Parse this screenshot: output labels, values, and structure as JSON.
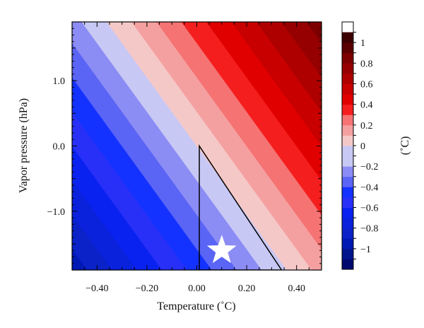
{
  "chart_data": {
    "type": "heatmap",
    "subtype": "filled-contour",
    "xlabel": "Temperature (˚C)",
    "ylabel": "Vapor pressure (hPa)",
    "xlim": [
      -0.5,
      0.5
    ],
    "ylim": [
      -1.9,
      1.9
    ],
    "x_ticks": [
      -0.4,
      -0.2,
      0.0,
      0.2,
      0.4
    ],
    "x_tick_labels": [
      "−0.40",
      "−0.20",
      "0.00",
      "0.20",
      "0.40"
    ],
    "y_ticks": [
      -1.0,
      0.0,
      1.0
    ],
    "y_tick_labels": [
      "−1.0",
      "0.0",
      "1.0"
    ],
    "field": "value = 1.0 * temperature + 0.19 * vapor_pressure",
    "field_coefficients": {
      "temperature": 1.0,
      "vapor_pressure": 0.19
    },
    "contour_bands": [
      {
        "lower": -1.1,
        "upper": -1.0,
        "color": "#000a6e"
      },
      {
        "lower": -1.0,
        "upper": -0.9,
        "color": "#00148c"
      },
      {
        "lower": -0.9,
        "upper": -0.8,
        "color": "#0019b4"
      },
      {
        "lower": -0.8,
        "upper": -0.7,
        "color": "#0a22c8"
      },
      {
        "lower": -0.7,
        "upper": -0.6,
        "color": "#0a22dc"
      },
      {
        "lower": -0.6,
        "upper": -0.5,
        "color": "#0a22f0"
      },
      {
        "lower": -0.5,
        "upper": -0.4,
        "color": "#2830f8"
      },
      {
        "lower": -0.4,
        "upper": -0.3,
        "color": "#1432ff"
      },
      {
        "lower": -0.3,
        "upper": -0.2,
        "color": "#5a64f5"
      },
      {
        "lower": -0.2,
        "upper": -0.1,
        "color": "#8c8cf5"
      },
      {
        "lower": -0.1,
        "upper": 0.0,
        "color": "#c8c8f5"
      },
      {
        "lower": 0.0,
        "upper": 0.1,
        "color": "#f5c8c8"
      },
      {
        "lower": 0.1,
        "upper": 0.2,
        "color": "#f5a0a0"
      },
      {
        "lower": 0.2,
        "upper": 0.3,
        "color": "#f57373"
      },
      {
        "lower": 0.3,
        "upper": 0.4,
        "color": "#f51e1e"
      },
      {
        "lower": 0.4,
        "upper": 0.5,
        "color": "#e10000"
      },
      {
        "lower": 0.5,
        "upper": 0.6,
        "color": "#c80000"
      },
      {
        "lower": 0.6,
        "upper": 0.7,
        "color": "#af0000"
      },
      {
        "lower": 0.7,
        "upper": 0.8,
        "color": "#960000"
      },
      {
        "lower": 0.8,
        "upper": 0.9,
        "color": "#7d0000"
      }
    ],
    "overlay_region": {
      "shape": "triangle",
      "vertices": [
        [
          0.01,
          0.0
        ],
        [
          0.01,
          -1.9
        ],
        [
          0.34,
          -1.9
        ]
      ],
      "stroke": "#000000"
    },
    "marker": {
      "shape": "star",
      "x": 0.1,
      "y": -1.6,
      "color": "#ffffff"
    },
    "colorbar": {
      "label": "(˚C)",
      "range": [
        -1.2,
        1.2
      ],
      "levels": [
        -1.1,
        -1.0,
        -0.9,
        -0.8,
        -0.7,
        -0.6,
        -0.5,
        -0.4,
        -0.3,
        -0.2,
        -0.1,
        0.0,
        0.1,
        0.2,
        0.3,
        0.4,
        0.5,
        0.6,
        0.7,
        0.8,
        0.9,
        1.0,
        1.1,
        1.2
      ],
      "colors": [
        "#000a6e",
        "#00148c",
        "#0019b4",
        "#0a22c8",
        "#0a22dc",
        "#0a22f0",
        "#2830f8",
        "#1432ff",
        "#5a64f5",
        "#8c8cf5",
        "#c8c8f5",
        "#c8c8f5",
        "#f5c8c8",
        "#f5a0a0",
        "#f57373",
        "#f51e1e",
        "#e10000",
        "#c80000",
        "#af0000",
        "#960000",
        "#7d0000",
        "#5a0000",
        "#3c0000"
      ],
      "ticks": [
        -1.0,
        -0.8,
        -0.6,
        -0.4,
        -0.2,
        0.0,
        0.2,
        0.4,
        0.6,
        0.8,
        1.0
      ],
      "tick_labels": [
        "−1",
        "−0.8",
        "−0.6",
        "−0.4",
        "−0.2",
        "0",
        "0.2",
        "0.4",
        "0.6",
        "0.8",
        "1"
      ]
    }
  }
}
